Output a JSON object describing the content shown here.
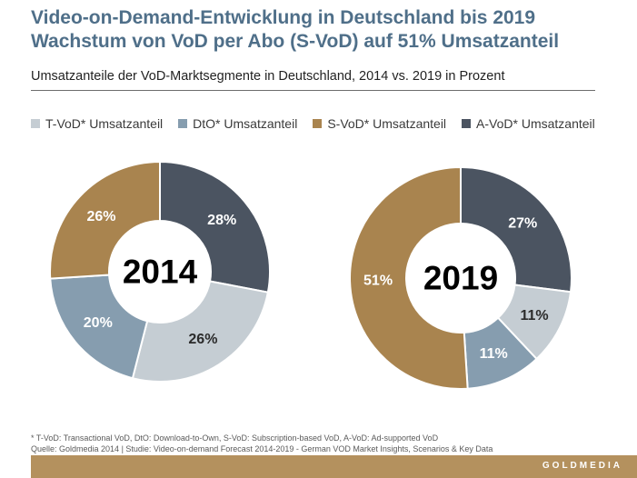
{
  "header": {
    "title_line1": "Video-on-Demand-Entwicklung in Deutschland bis 2019",
    "title_line2": "Wachstum von VoD per Abo (S-VoD) auf 51% Umsatzanteil",
    "subtitle": "Umsatzanteile der VoD-Marktsegmente in Deutschland, 2014 vs. 2019 in Prozent"
  },
  "legend": [
    {
      "label": "T-VoD* Umsatzanteil",
      "color": "#c5cdd3"
    },
    {
      "label": "DtO* Umsatzanteil",
      "color": "#869daf"
    },
    {
      "label": "S-VoD* Umsatzanteil",
      "color": "#a9844f"
    },
    {
      "label": "A-VoD* Umsatzanteil",
      "color": "#4b5461"
    }
  ],
  "chart_data": [
    {
      "type": "pie",
      "title": "2014",
      "categories": [
        "A-VoD",
        "T-VoD",
        "DtO",
        "S-VoD"
      ],
      "values": [
        28,
        26,
        20,
        26
      ],
      "labels": [
        "28%",
        "26%",
        "20%",
        "26%"
      ],
      "colors": [
        "#4b5461",
        "#c5cdd3",
        "#869daf",
        "#a9844f"
      ]
    },
    {
      "type": "pie",
      "title": "2019",
      "categories": [
        "A-VoD",
        "T-VoD",
        "DtO",
        "S-VoD"
      ],
      "values": [
        27,
        11,
        11,
        51
      ],
      "labels": [
        "27%",
        "11%",
        "11%",
        "51%"
      ],
      "colors": [
        "#4b5461",
        "#c5cdd3",
        "#869daf",
        "#a9844f"
      ]
    }
  ],
  "footer": {
    "footnote": "* T-VoD: Transactional VoD, DtO: Download-to-Own, S-VoD: Subscription-based VoD, A-VoD: Ad-supported VoD",
    "source": "Quelle: Goldmedia 2014 | Studie: Video-on-demand Forecast 2014-2019 - German VOD Market Insights, Scenarios & Key Data",
    "brand": "GOLDMEDIA"
  }
}
